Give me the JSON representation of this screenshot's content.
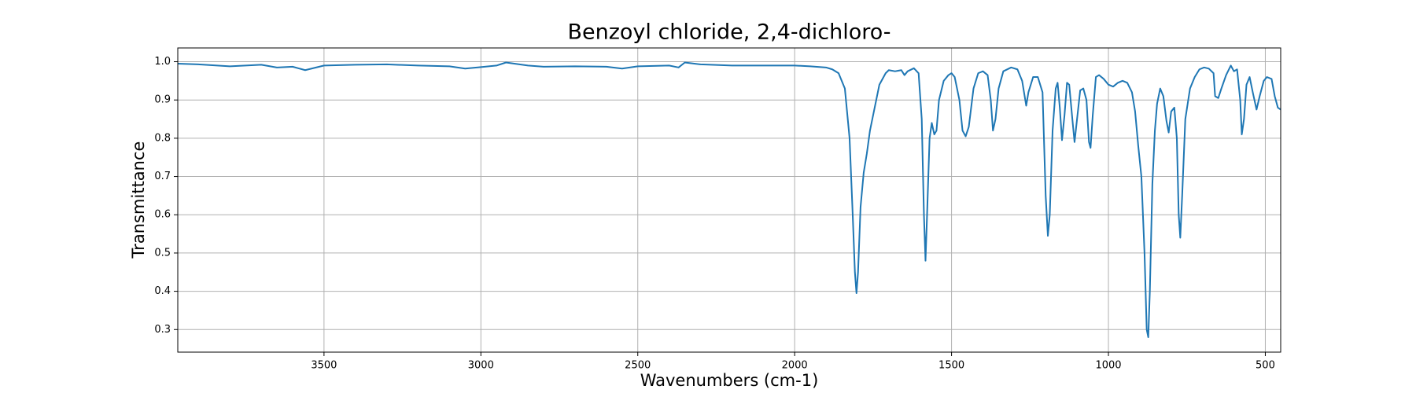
{
  "chart_data": {
    "type": "line",
    "title": "Benzoyl chloride, 2,4-dichloro-",
    "xlabel": "Wavenumbers (cm-1)",
    "ylabel": "Transmittance",
    "color": "#1f77b4",
    "grid": true,
    "xlim": [
      3966,
      451
    ],
    "ylim": [
      0.241,
      1.036
    ],
    "xticks": [
      3500,
      3000,
      2500,
      2000,
      1500,
      1000,
      500
    ],
    "yticks": [
      0.3,
      0.4,
      0.5,
      0.6,
      0.7,
      0.8,
      0.9,
      {
        "value": 1,
        "label": "1.0"
      }
    ],
    "x": [
      3966,
      3900,
      3800,
      3750,
      3700,
      3650,
      3600,
      3560,
      3500,
      3400,
      3300,
      3200,
      3100,
      3050,
      3000,
      2950,
      2920,
      2850,
      2800,
      2700,
      2600,
      2550,
      2500,
      2400,
      2370,
      2350,
      2300,
      2200,
      2100,
      2000,
      1950,
      1900,
      1880,
      1860,
      1840,
      1825,
      1815,
      1808,
      1803,
      1798,
      1790,
      1780,
      1770,
      1760,
      1745,
      1730,
      1710,
      1700,
      1680,
      1660,
      1650,
      1640,
      1620,
      1605,
      1595,
      1588,
      1583,
      1578,
      1570,
      1563,
      1555,
      1548,
      1540,
      1525,
      1510,
      1500,
      1490,
      1475,
      1465,
      1455,
      1445,
      1430,
      1415,
      1400,
      1385,
      1375,
      1368,
      1360,
      1350,
      1335,
      1310,
      1290,
      1275,
      1262,
      1255,
      1240,
      1225,
      1210,
      1200,
      1193,
      1187,
      1178,
      1168,
      1162,
      1155,
      1148,
      1140,
      1132,
      1125,
      1115,
      1108,
      1100,
      1090,
      1080,
      1070,
      1062,
      1057,
      1050,
      1040,
      1030,
      1015,
      1000,
      985,
      970,
      955,
      940,
      925,
      915,
      905,
      895,
      885,
      878,
      873,
      868,
      860,
      852,
      845,
      835,
      825,
      815,
      808,
      800,
      790,
      782,
      776,
      771,
      765,
      755,
      740,
      725,
      710,
      695,
      680,
      665,
      660,
      650,
      640,
      625,
      610,
      600,
      590,
      580,
      575,
      568,
      560,
      550,
      540,
      528,
      518,
      505,
      495,
      480,
      470,
      460,
      451
    ],
    "values": [
      0.995,
      0.993,
      0.988,
      0.99,
      0.992,
      0.985,
      0.987,
      0.978,
      0.99,
      0.992,
      0.993,
      0.99,
      0.988,
      0.982,
      0.986,
      0.99,
      0.998,
      0.99,
      0.987,
      0.988,
      0.987,
      0.982,
      0.988,
      0.99,
      0.985,
      0.998,
      0.993,
      0.99,
      0.99,
      0.99,
      0.988,
      0.985,
      0.98,
      0.97,
      0.93,
      0.8,
      0.6,
      0.45,
      0.395,
      0.45,
      0.62,
      0.71,
      0.76,
      0.82,
      0.88,
      0.94,
      0.97,
      0.978,
      0.975,
      0.978,
      0.965,
      0.975,
      0.983,
      0.97,
      0.85,
      0.6,
      0.48,
      0.6,
      0.8,
      0.84,
      0.81,
      0.82,
      0.9,
      0.95,
      0.965,
      0.97,
      0.96,
      0.9,
      0.82,
      0.805,
      0.83,
      0.93,
      0.97,
      0.975,
      0.965,
      0.9,
      0.82,
      0.85,
      0.93,
      0.975,
      0.985,
      0.98,
      0.95,
      0.885,
      0.92,
      0.96,
      0.96,
      0.92,
      0.65,
      0.545,
      0.6,
      0.82,
      0.93,
      0.945,
      0.88,
      0.795,
      0.86,
      0.945,
      0.94,
      0.85,
      0.79,
      0.85,
      0.925,
      0.93,
      0.9,
      0.79,
      0.775,
      0.86,
      0.96,
      0.965,
      0.955,
      0.94,
      0.935,
      0.945,
      0.95,
      0.945,
      0.92,
      0.87,
      0.78,
      0.7,
      0.5,
      0.3,
      0.28,
      0.4,
      0.68,
      0.82,
      0.89,
      0.93,
      0.91,
      0.845,
      0.815,
      0.87,
      0.88,
      0.8,
      0.6,
      0.54,
      0.65,
      0.85,
      0.93,
      0.96,
      0.98,
      0.985,
      0.982,
      0.97,
      0.91,
      0.905,
      0.93,
      0.965,
      0.99,
      0.975,
      0.98,
      0.9,
      0.81,
      0.85,
      0.94,
      0.96,
      0.92,
      0.875,
      0.91,
      0.95,
      0.96,
      0.955,
      0.91,
      0.88,
      0.875
    ]
  }
}
